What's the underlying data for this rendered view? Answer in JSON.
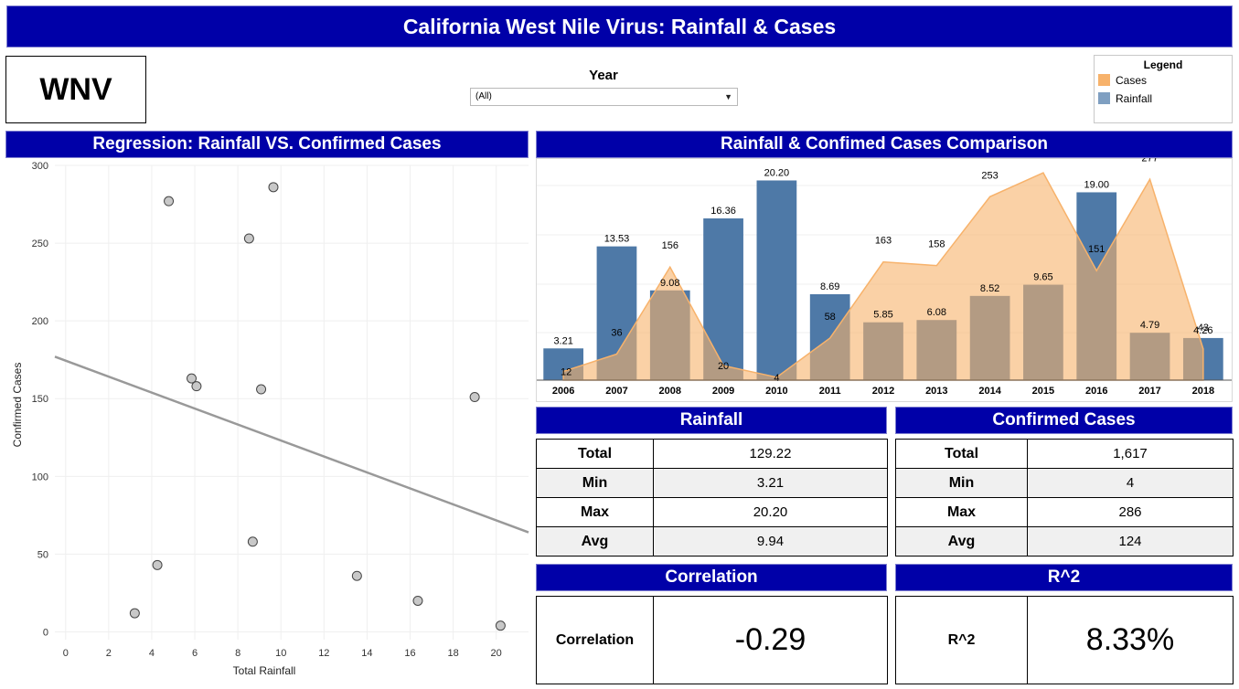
{
  "dashboard": {
    "title": "California West Nile Virus: Rainfall & Cases",
    "logo_text": "WNV"
  },
  "filter": {
    "label": "Year",
    "selected": "(All)"
  },
  "legend": {
    "title": "Legend",
    "items": [
      {
        "label": "Cases",
        "color": "#f7b26b"
      },
      {
        "label": "Rainfall",
        "color": "#7f9fc1"
      }
    ]
  },
  "regression": {
    "title": "Regression: Rainfall VS. Confirmed Cases"
  },
  "comparison": {
    "title": "Rainfall & Confimed Cases Comparison"
  },
  "rainfall_stats": {
    "title": "Rainfall",
    "rows": [
      {
        "label": "Total",
        "value": "129.22"
      },
      {
        "label": "Min",
        "value": "3.21"
      },
      {
        "label": "Max",
        "value": "20.20"
      },
      {
        "label": "Avg",
        "value": "9.94"
      }
    ]
  },
  "cases_stats": {
    "title": "Confirmed Cases",
    "rows": [
      {
        "label": "Total",
        "value": "1,617"
      },
      {
        "label": "Min",
        "value": "4"
      },
      {
        "label": "Max",
        "value": "286"
      },
      {
        "label": "Avg",
        "value": "124"
      }
    ]
  },
  "correlation": {
    "title": "Correlation",
    "label": "Correlation",
    "value": "-0.29"
  },
  "r2": {
    "title": "R^2",
    "label": "R^2",
    "value": "8.33%"
  },
  "chart_data": [
    {
      "type": "scatter",
      "xlabel": "Total Rainfall",
      "ylabel": "Confirmed Cases",
      "xlim": [
        -0.5,
        21.5
      ],
      "ylim": [
        -5,
        300
      ],
      "xticks": [
        0,
        2,
        4,
        6,
        8,
        10,
        12,
        14,
        16,
        18,
        20
      ],
      "yticks": [
        0,
        50,
        100,
        150,
        200,
        250,
        300
      ],
      "points": [
        {
          "x": 3.21,
          "y": 12
        },
        {
          "x": 13.53,
          "y": 36
        },
        {
          "x": 9.08,
          "y": 156
        },
        {
          "x": 16.36,
          "y": 20
        },
        {
          "x": 20.2,
          "y": 4
        },
        {
          "x": 8.69,
          "y": 58
        },
        {
          "x": 5.85,
          "y": 163
        },
        {
          "x": 6.08,
          "y": 158
        },
        {
          "x": 8.52,
          "y": 253
        },
        {
          "x": 9.65,
          "y": 286
        },
        {
          "x": 19.0,
          "y": 151
        },
        {
          "x": 4.79,
          "y": 277
        },
        {
          "x": 4.26,
          "y": 43
        }
      ],
      "trendline": {
        "x": [
          -0.5,
          21.5
        ],
        "y": [
          177,
          64
        ]
      },
      "grid": true,
      "point_color": "#c8c8c8",
      "trend_color": "#999999"
    },
    {
      "type": "bar",
      "categories": [
        "2006",
        "2007",
        "2008",
        "2009",
        "2010",
        "2011",
        "2012",
        "2013",
        "2014",
        "2015",
        "2016",
        "2017",
        "2018"
      ],
      "series": [
        {
          "name": "Rainfall",
          "values": [
            3.21,
            13.53,
            9.08,
            16.36,
            20.2,
            8.69,
            5.85,
            6.08,
            8.52,
            9.65,
            19.0,
            4.79,
            4.26
          ],
          "labels": [
            "3.21",
            "13.53",
            "9.08",
            "16.36",
            "20.20",
            "8.69",
            "5.85",
            "6.08",
            "8.52",
            "9.65",
            "19.00",
            "4.79",
            "4.26"
          ],
          "color": "#4e79a7",
          "ylim": [
            0,
            22
          ]
        },
        {
          "name": "Cases",
          "type": "area",
          "values": [
            12,
            36,
            156,
            20,
            4,
            58,
            163,
            158,
            253,
            286,
            151,
            277,
            43
          ],
          "color": "#f7b26b",
          "ylim": [
            0,
            300
          ]
        }
      ],
      "grid": true,
      "legend": "top-right"
    }
  ]
}
